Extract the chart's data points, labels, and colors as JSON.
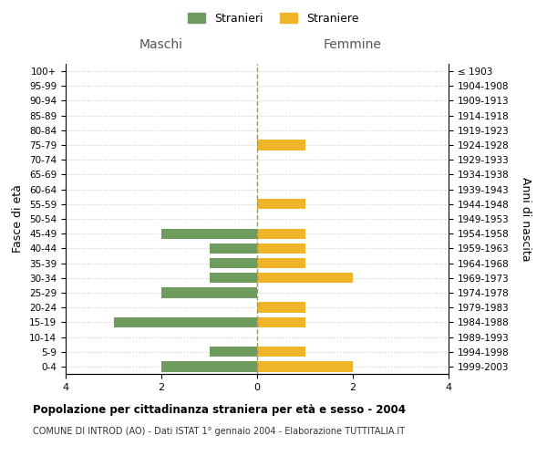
{
  "age_groups": [
    "100+",
    "95-99",
    "90-94",
    "85-89",
    "80-84",
    "75-79",
    "70-74",
    "65-69",
    "60-64",
    "55-59",
    "50-54",
    "45-49",
    "40-44",
    "35-39",
    "30-34",
    "25-29",
    "20-24",
    "15-19",
    "10-14",
    "5-9",
    "0-4"
  ],
  "birth_years": [
    "≤ 1903",
    "1904-1908",
    "1909-1913",
    "1914-1918",
    "1919-1923",
    "1924-1928",
    "1929-1933",
    "1934-1938",
    "1939-1943",
    "1944-1948",
    "1949-1953",
    "1954-1958",
    "1959-1963",
    "1964-1968",
    "1969-1973",
    "1974-1978",
    "1979-1983",
    "1984-1988",
    "1989-1993",
    "1994-1998",
    "1999-2003"
  ],
  "maschi": [
    0,
    0,
    0,
    0,
    0,
    0,
    0,
    0,
    0,
    0,
    0,
    2,
    1,
    1,
    1,
    2,
    0,
    3,
    0,
    1,
    2
  ],
  "femmine": [
    0,
    0,
    0,
    0,
    0,
    1,
    0,
    0,
    0,
    1,
    0,
    1,
    1,
    1,
    2,
    0,
    1,
    1,
    0,
    1,
    2
  ],
  "maschi_color": "#6e9b5e",
  "femmine_color": "#f0b429",
  "xlim": 4,
  "title": "Popolazione per cittadinanza straniera per età e sesso - 2004",
  "subtitle": "COMUNE DI INTROD (AO) - Dati ISTAT 1° gennaio 2004 - Elaborazione TUTTITALIA.IT",
  "ylabel_left": "Fasce di età",
  "ylabel_right": "Anni di nascita",
  "label_maschi": "Maschi",
  "label_femmine": "Femmine",
  "legend_stranieri": "Stranieri",
  "legend_straniere": "Straniere",
  "background_color": "#ffffff",
  "grid_color": "#cccccc",
  "center_line_color": "#999966"
}
